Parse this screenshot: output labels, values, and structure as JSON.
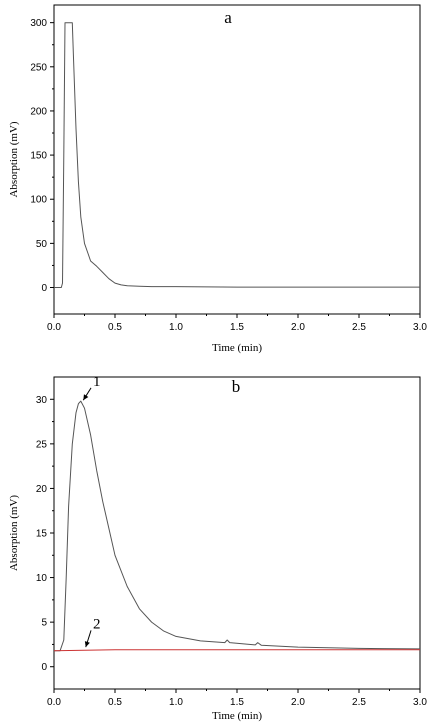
{
  "chart_data": [
    {
      "type": "line",
      "panel_label": "a",
      "xlabel": "Time (min)",
      "ylabel": "Absorption (mV)",
      "xlim": [
        0,
        3.0
      ],
      "ylim": [
        -30,
        320
      ],
      "xticks": [
        "0.0",
        "0.5",
        "1.0",
        "1.5",
        "2.0",
        "2.5",
        "3.0"
      ],
      "xtick_values": [
        0,
        0.5,
        1.0,
        1.5,
        2.0,
        2.5,
        3.0
      ],
      "yticks": [
        "0",
        "50",
        "100",
        "150",
        "200",
        "250",
        "300"
      ],
      "ytick_values": [
        0,
        50,
        100,
        150,
        200,
        250,
        300
      ],
      "grid": false,
      "series": [
        {
          "color": "#555555",
          "x": [
            0.0,
            0.06,
            0.07,
            0.08,
            0.09,
            0.1,
            0.15,
            0.16,
            0.18,
            0.2,
            0.22,
            0.25,
            0.28,
            0.3,
            0.35,
            0.4,
            0.45,
            0.5,
            0.55,
            0.6,
            0.7,
            0.8,
            1.0,
            1.5,
            2.0,
            2.5,
            3.0
          ],
          "y": [
            0,
            0,
            5,
            150,
            300,
            300,
            300,
            260,
            180,
            120,
            80,
            50,
            38,
            30,
            24,
            17,
            10,
            5,
            3,
            2,
            1.5,
            1,
            1,
            0.5,
            0.5,
            0.5,
            0.5
          ]
        }
      ],
      "annotations": []
    },
    {
      "type": "line",
      "panel_label": "b",
      "xlabel": "Time (min)",
      "ylabel": "Absorption (mV)",
      "xlim": [
        0,
        3.0
      ],
      "ylim": [
        -2.5,
        32.5
      ],
      "xticks": [
        "0.0",
        "0.5",
        "1.0",
        "1.5",
        "2.0",
        "2.5",
        "3.0"
      ],
      "xtick_values": [
        0,
        0.5,
        1.0,
        1.5,
        2.0,
        2.5,
        3.0
      ],
      "yticks": [
        "0",
        "5",
        "10",
        "15",
        "20",
        "25",
        "30"
      ],
      "ytick_values": [
        0,
        5,
        10,
        15,
        20,
        25,
        30
      ],
      "grid": false,
      "series": [
        {
          "color": "#555555",
          "x": [
            0.0,
            0.05,
            0.08,
            0.1,
            0.12,
            0.15,
            0.18,
            0.2,
            0.22,
            0.25,
            0.3,
            0.35,
            0.4,
            0.45,
            0.5,
            0.6,
            0.7,
            0.8,
            0.9,
            1.0,
            1.2,
            1.4,
            1.42,
            1.44,
            1.6,
            1.65,
            1.67,
            1.7,
            2.0,
            2.5,
            3.0
          ],
          "y": [
            1.8,
            1.8,
            3,
            10,
            18,
            25,
            28.5,
            29.5,
            29.8,
            29,
            26,
            22,
            18.5,
            15.5,
            12.5,
            9,
            6.5,
            5,
            4,
            3.4,
            2.9,
            2.7,
            3.0,
            2.7,
            2.5,
            2.45,
            2.7,
            2.4,
            2.2,
            2.05,
            2.0
          ]
        },
        {
          "color": "#cc3333",
          "x": [
            0.0,
            0.5,
            1.0,
            1.5,
            2.0,
            2.5,
            3.0
          ],
          "y": [
            1.8,
            1.9,
            1.9,
            1.9,
            1.9,
            1.9,
            1.9
          ]
        }
      ],
      "annotations": [
        {
          "text": "1",
          "x": 0.32,
          "y": 31.5,
          "arrow_to_x": 0.24,
          "arrow_to_y": 29.9
        },
        {
          "text": "2",
          "x": 0.32,
          "y": 4.3,
          "arrow_to_x": 0.26,
          "arrow_to_y": 2.2
        }
      ]
    }
  ]
}
